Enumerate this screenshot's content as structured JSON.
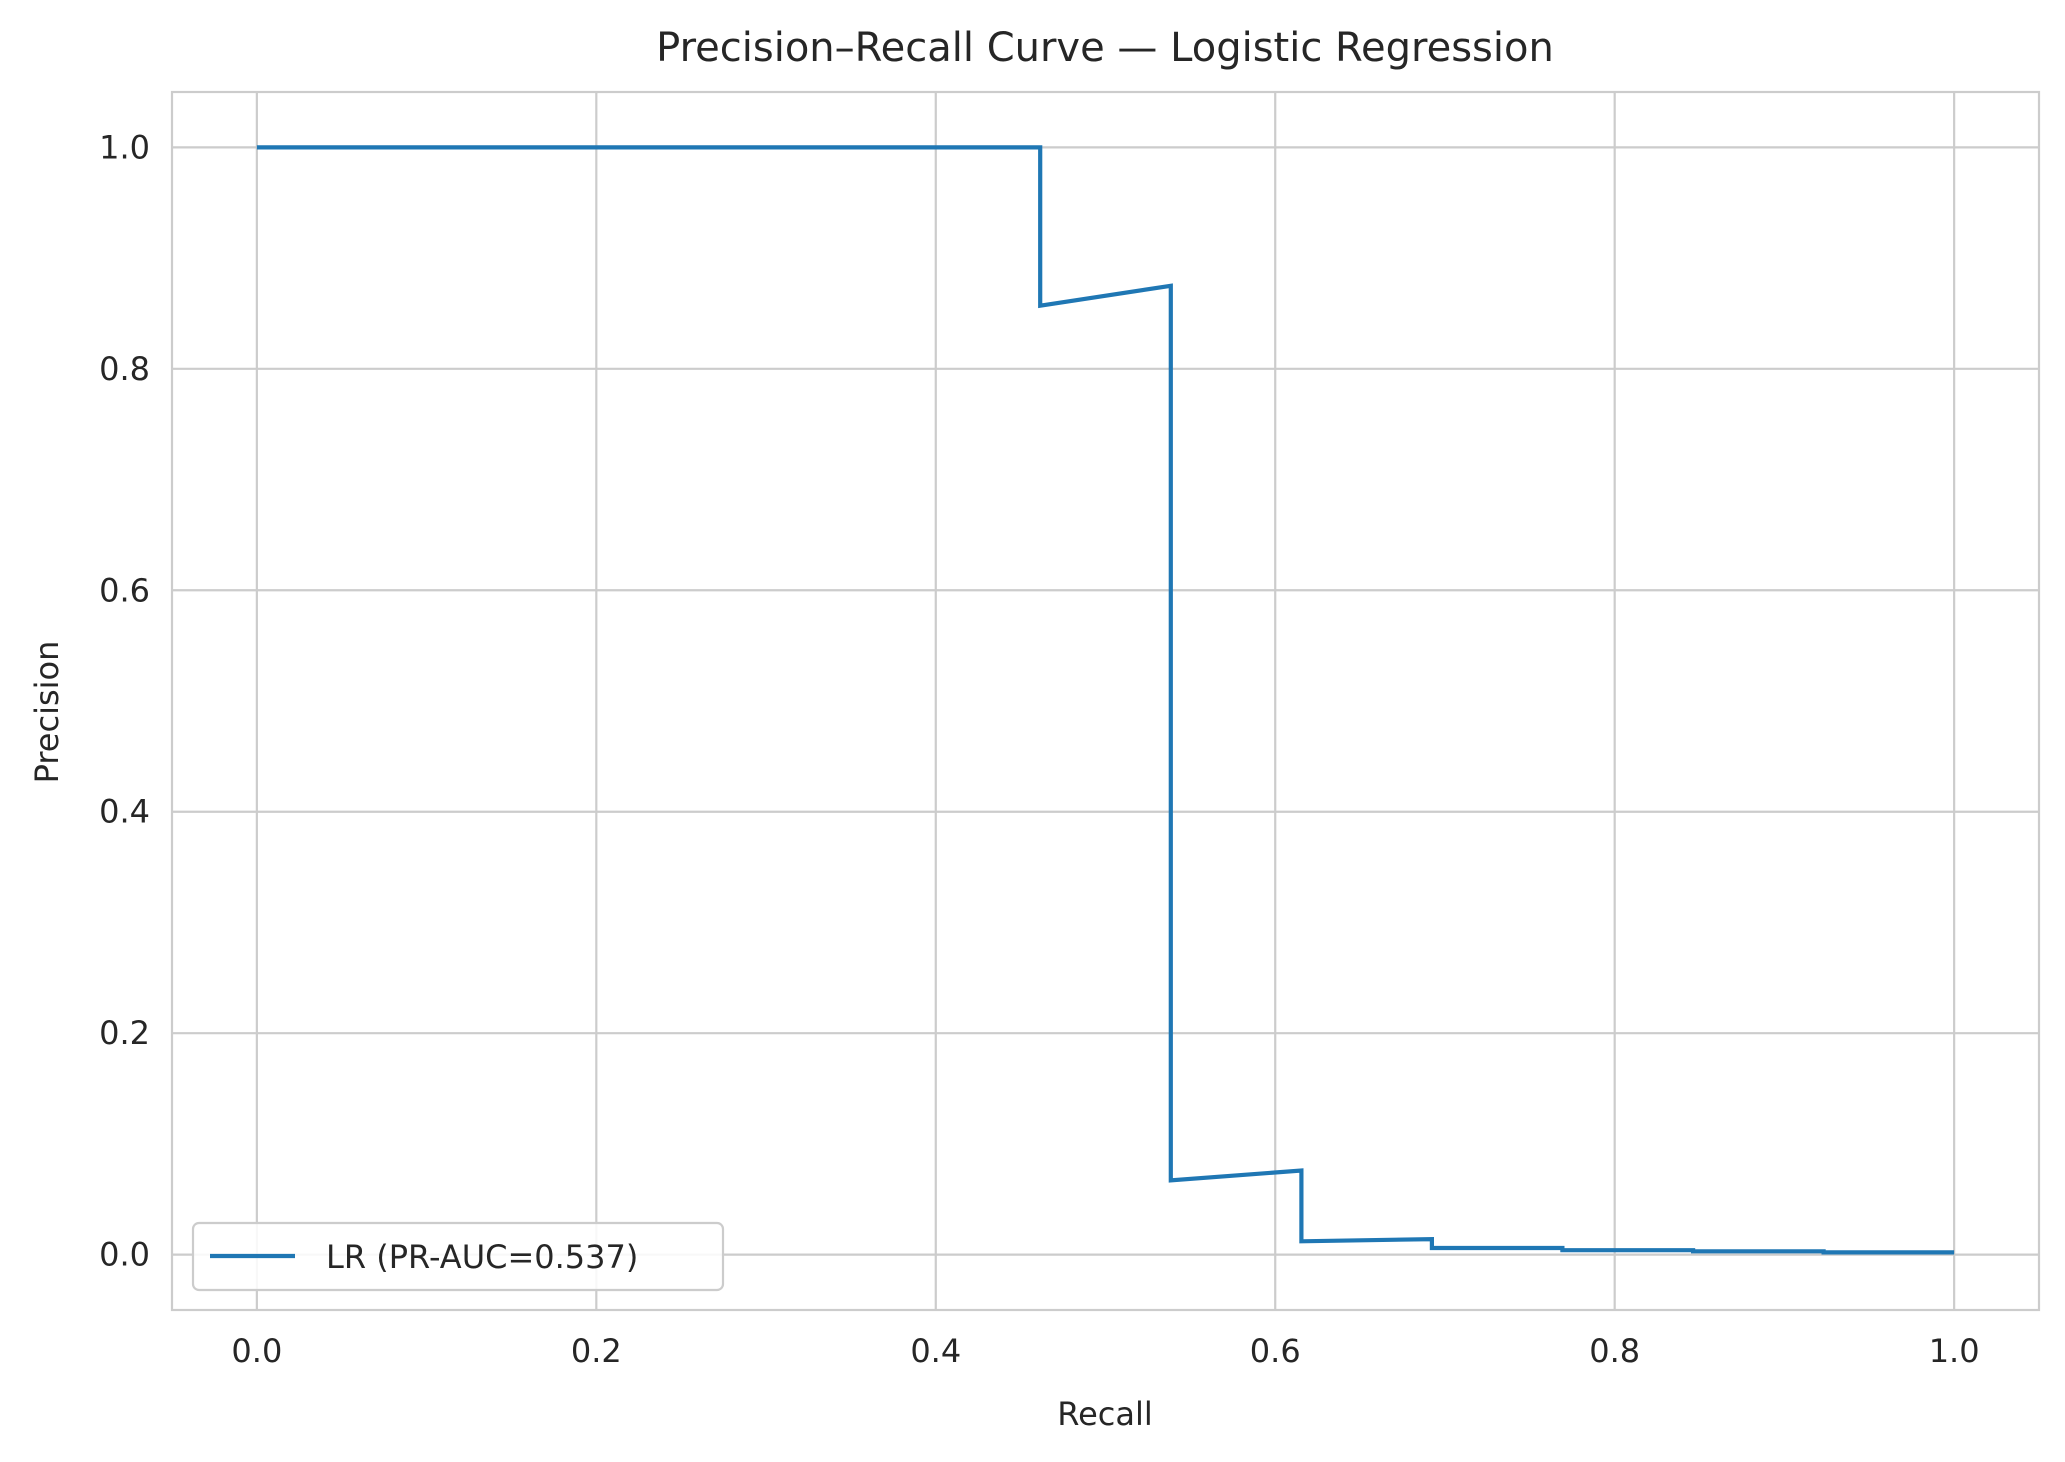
{
  "chart_data": {
    "type": "line",
    "title": "Precision–Recall Curve — Logistic Regression",
    "xlabel": "Recall",
    "ylabel": "Precision",
    "xlim": [
      -0.05,
      1.05
    ],
    "ylim": [
      -0.05,
      1.05
    ],
    "xticks": [
      0.0,
      0.2,
      0.4,
      0.6,
      0.8,
      1.0
    ],
    "yticks": [
      0.0,
      0.2,
      0.4,
      0.6,
      0.8,
      1.0
    ],
    "xtick_labels": [
      "0.0",
      "0.2",
      "0.4",
      "0.6",
      "0.8",
      "1.0"
    ],
    "ytick_labels": [
      "0.0",
      "0.2",
      "0.4",
      "0.6",
      "0.8",
      "1.0"
    ],
    "grid": true,
    "legend_position": "lower-left",
    "series": [
      {
        "name": "LR (PR-AUC=0.537)",
        "color": "#1f77b4",
        "x": [
          0.0,
          0.4615,
          0.4615,
          0.5385,
          0.5385,
          0.6154,
          0.6154,
          0.6923,
          0.6923,
          0.7692,
          0.7692,
          0.8462,
          0.8462,
          0.9231,
          0.9231,
          1.0
        ],
        "y": [
          1.0,
          1.0,
          0.857,
          0.875,
          0.067,
          0.076,
          0.012,
          0.014,
          0.006,
          0.006,
          0.004,
          0.004,
          0.003,
          0.003,
          0.002,
          0.002
        ]
      }
    ]
  }
}
